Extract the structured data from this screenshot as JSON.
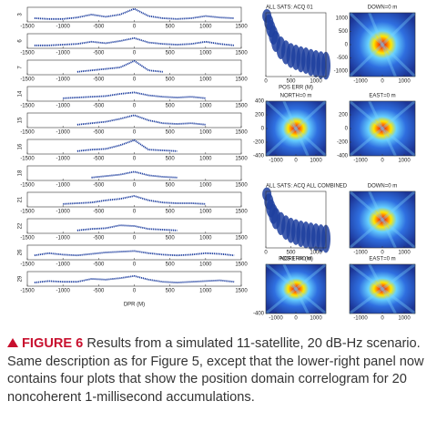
{
  "chart_data": [
    {
      "type": "strips",
      "x_label": "DPR (M)",
      "xlim": [
        -1500,
        1500
      ],
      "xticks": [
        -1500,
        -1000,
        -500,
        0,
        500,
        1000,
        1500
      ],
      "ylim": [
        0,
        1
      ],
      "color": "#1f3f9f",
      "series": [
        {
          "name": "3",
          "x": [
            -1400,
            -1200,
            -1000,
            -800,
            -600,
            -400,
            -200,
            0,
            200,
            400,
            600,
            800,
            1000,
            1200,
            1400
          ],
          "values": [
            0.25,
            0.2,
            0.2,
            0.3,
            0.5,
            0.35,
            0.5,
            0.9,
            0.4,
            0.25,
            0.2,
            0.25,
            0.4,
            0.3,
            0.25
          ]
        },
        {
          "name": "6",
          "x": [
            -1400,
            -1200,
            -1000,
            -800,
            -600,
            -400,
            -200,
            0,
            200,
            400,
            600,
            800,
            1000,
            1200,
            1400
          ],
          "values": [
            0.2,
            0.2,
            0.25,
            0.3,
            0.45,
            0.35,
            0.5,
            0.7,
            0.4,
            0.3,
            0.25,
            0.3,
            0.45,
            0.3,
            0.2
          ]
        },
        {
          "name": "7",
          "x": [
            -800,
            -600,
            -400,
            -200,
            0,
            200,
            400
          ],
          "values": [
            0.2,
            0.3,
            0.4,
            0.5,
            0.95,
            0.3,
            0.2
          ]
        },
        {
          "name": "14",
          "x": [
            -1000,
            -800,
            -600,
            -400,
            -200,
            0,
            200,
            400,
            600,
            800,
            1000
          ],
          "values": [
            0.2,
            0.25,
            0.3,
            0.35,
            0.5,
            0.6,
            0.4,
            0.3,
            0.25,
            0.3,
            0.2
          ]
        },
        {
          "name": "15",
          "x": [
            -800,
            -600,
            -400,
            -200,
            0,
            200,
            400,
            600,
            800,
            1000
          ],
          "values": [
            0.2,
            0.3,
            0.4,
            0.6,
            0.85,
            0.5,
            0.3,
            0.25,
            0.3,
            0.2
          ]
        },
        {
          "name": "16",
          "x": [
            -800,
            -600,
            -400,
            -200,
            0,
            200,
            400,
            600
          ],
          "values": [
            0.2,
            0.3,
            0.35,
            0.6,
            0.95,
            0.3,
            0.25,
            0.2
          ]
        },
        {
          "name": "18",
          "x": [
            -600,
            -400,
            -200,
            0,
            200,
            400,
            600
          ],
          "values": [
            0.2,
            0.3,
            0.4,
            0.6,
            0.35,
            0.25,
            0.2
          ]
        },
        {
          "name": "21",
          "x": [
            -1000,
            -800,
            -600,
            -400,
            -200,
            0,
            200,
            400,
            600,
            800,
            1000
          ],
          "values": [
            0.2,
            0.25,
            0.3,
            0.45,
            0.55,
            0.75,
            0.45,
            0.3,
            0.25,
            0.25,
            0.2
          ]
        },
        {
          "name": "22",
          "x": [
            -800,
            -600,
            -400,
            -200,
            0,
            200,
            400,
            600
          ],
          "values": [
            0.2,
            0.3,
            0.35,
            0.55,
            0.5,
            0.3,
            0.25,
            0.2
          ]
        },
        {
          "name": "26",
          "x": [
            -1400,
            -1200,
            -1000,
            -800,
            -600,
            -400,
            -200,
            0,
            200,
            400,
            600,
            800,
            1000,
            1200,
            1400
          ],
          "values": [
            0.3,
            0.45,
            0.35,
            0.3,
            0.4,
            0.5,
            0.55,
            0.6,
            0.45,
            0.35,
            0.3,
            0.35,
            0.45,
            0.4,
            0.3
          ]
        },
        {
          "name": "29",
          "x": [
            -1400,
            -1200,
            -1000,
            -800,
            -600,
            -400,
            -200,
            0,
            200,
            400,
            600,
            800,
            1000,
            1200,
            1400
          ],
          "values": [
            0.25,
            0.35,
            0.3,
            0.3,
            0.5,
            0.45,
            0.55,
            0.7,
            0.45,
            0.3,
            0.25,
            0.3,
            0.35,
            0.4,
            0.3
          ]
        }
      ]
    },
    {
      "type": "scatter",
      "title": "ALL SATS: ACQ 01",
      "x_label": "POS ERR (M)",
      "xlim": [
        0,
        1200
      ],
      "xticks": [
        0,
        500,
        1000
      ],
      "ylim": [
        0,
        1
      ],
      "color": "#1f3f9f",
      "x": [
        20,
        60,
        100,
        150,
        200,
        300,
        400,
        500,
        600,
        700,
        800,
        900,
        1000,
        1100,
        1200
      ],
      "values": [
        0.95,
        0.85,
        0.75,
        0.65,
        0.55,
        0.45,
        0.38,
        0.33,
        0.3,
        0.27,
        0.25,
        0.22,
        0.2,
        0.18,
        0.17
      ]
    },
    {
      "type": "heatmap",
      "title": "DOWN=0 m",
      "xlim": [
        -1500,
        1500
      ],
      "xticks": [
        -1000,
        0,
        1000
      ],
      "ylim": [
        -1200,
        1200
      ],
      "yticks": [
        -1000,
        -500,
        0,
        500,
        1000
      ]
    },
    {
      "type": "heatmap",
      "title": "NORTH=0 m",
      "xlim": [
        -1500,
        1500
      ],
      "xticks": [
        -1000,
        0,
        1000
      ],
      "ylim": [
        -400,
        400
      ],
      "yticks": [
        -400,
        -200,
        0,
        200,
        400
      ]
    },
    {
      "type": "heatmap",
      "title": "EAST=0 m",
      "xlim": [
        -1500,
        1500
      ],
      "xticks": [
        -1000,
        0,
        1000
      ],
      "ylim": [
        -400,
        400
      ],
      "yticks": [
        -400,
        -200,
        0,
        200
      ]
    },
    {
      "type": "scatter",
      "title": "ALL SATS: ACQ ALL COMBINED",
      "x_label": "POS ERR (M)",
      "xlim": [
        0,
        1200
      ],
      "xticks": [
        0,
        500,
        1000
      ],
      "ylim": [
        0,
        1
      ],
      "color": "#1f3f9f",
      "x": [
        20,
        60,
        100,
        150,
        200,
        300,
        400,
        500,
        600,
        700,
        800,
        900,
        1000,
        1100,
        1200
      ],
      "values": [
        0.95,
        0.82,
        0.7,
        0.6,
        0.52,
        0.43,
        0.36,
        0.31,
        0.28,
        0.25,
        0.23,
        0.21,
        0.19,
        0.17,
        0.16
      ]
    },
    {
      "type": "heatmap",
      "title": "DOWN=0 m",
      "xlim": [
        -1500,
        1500
      ],
      "xticks": [
        -1000,
        0,
        1000
      ],
      "ylim": [
        -1200,
        1200
      ],
      "yticks": []
    },
    {
      "type": "heatmap",
      "title": "NORTH=0 m",
      "xlim": [
        -1500,
        1500
      ],
      "xticks": [
        -1000,
        0,
        1000
      ],
      "ylim": [
        -400,
        400
      ],
      "yticks": [
        -400
      ]
    },
    {
      "type": "heatmap",
      "title": "EAST=0 m",
      "xlim": [
        -1500,
        1500
      ],
      "xticks": [
        -1000,
        0,
        1000
      ],
      "ylim": [
        -400,
        400
      ],
      "yticks": []
    }
  ],
  "caption": {
    "label": "FIGURE 6",
    "text": "Results from a simulated 11-satellite, 20 dB-Hz scenario. Same description as for Figure 5, except that the lower-right panel now contains four plots that show the position domain correlogram for 20 noncoherent 1-millisecond accumulations."
  }
}
